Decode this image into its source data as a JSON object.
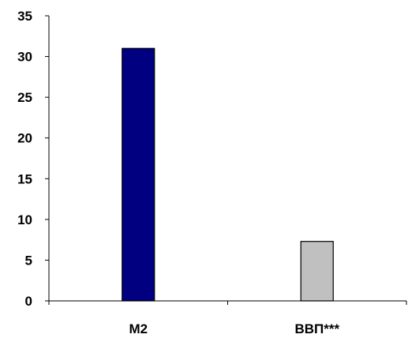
{
  "chart_data": {
    "type": "bar",
    "title": "",
    "xlabel": "",
    "ylabel": "",
    "categories": [
      "М2",
      "ВВП***"
    ],
    "values": [
      31,
      7.3
    ],
    "ylim": [
      0,
      35
    ],
    "yticks": [
      0,
      5,
      10,
      15,
      20,
      25,
      30,
      35
    ],
    "grid": false,
    "legend": "none",
    "colors": {
      "bars": [
        "#000080",
        "#c0c0c0"
      ],
      "bar_stroke": "#000000",
      "axis": "#000000"
    }
  }
}
